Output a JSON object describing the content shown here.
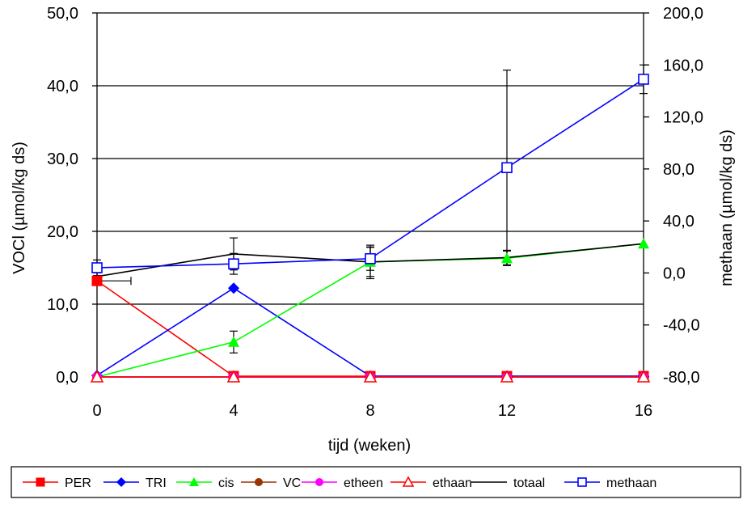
{
  "chart_data": {
    "type": "line",
    "title": "",
    "xlabel": "tijd (weken)",
    "ylabel": "VOCl (µmol/kg ds)",
    "y2label": "methaan (µmol/kg ds)",
    "x_ticks": [
      "0",
      "4",
      "8",
      "12",
      "16"
    ],
    "y_ticks": [
      "0,0",
      "10,0",
      "20,0",
      "30,0",
      "40,0",
      "50,0"
    ],
    "y2_ticks": [
      "-80,0",
      "-40,0",
      "0,0",
      "40,0",
      "80,0",
      "120,0",
      "160,0",
      "200,0"
    ],
    "xlim": [
      0,
      16
    ],
    "ylim": [
      0,
      50
    ],
    "y2lim": [
      -80,
      200
    ],
    "grid": "horizontal",
    "legend_position": "bottom",
    "series": [
      {
        "name": "PER",
        "axis": "left",
        "color": "#ff0000",
        "marker": "square-filled",
        "x": [
          0,
          4,
          8,
          12,
          16
        ],
        "y": [
          13.2,
          0.1,
          0.1,
          0.1,
          0.1
        ]
      },
      {
        "name": "TRI",
        "axis": "left",
        "color": "#0000ff",
        "marker": "diamond-filled",
        "x": [
          0,
          4,
          8,
          12,
          16
        ],
        "y": [
          0.2,
          12.2,
          0.1,
          0.1,
          0.1
        ]
      },
      {
        "name": "cis",
        "axis": "left",
        "color": "#00ff00",
        "marker": "triangle-filled",
        "x": [
          0,
          4,
          8,
          12,
          16
        ],
        "y": [
          0.0,
          4.8,
          15.8,
          16.3,
          18.3
        ],
        "err": [
          0,
          1.5,
          2.0,
          1.0,
          0
        ]
      },
      {
        "name": "VC",
        "axis": "left",
        "color": "#993300",
        "marker": "circle-filled",
        "x": [
          0,
          4,
          8,
          12,
          16
        ],
        "y": [
          0.0,
          0.0,
          0.0,
          0.0,
          0.0
        ]
      },
      {
        "name": "etheen",
        "axis": "left",
        "color": "#ff00ff",
        "marker": "circle-filled",
        "x": [
          0,
          4,
          8,
          12,
          16
        ],
        "y": [
          0.0,
          0.0,
          0.0,
          0.0,
          0.0
        ]
      },
      {
        "name": "ethaan",
        "axis": "left",
        "color": "#ff0000",
        "marker": "triangle-open",
        "x": [
          0,
          4,
          8,
          12,
          16
        ],
        "y": [
          0.0,
          0.0,
          0.0,
          0.0,
          0.0
        ]
      },
      {
        "name": "totaal",
        "axis": "left",
        "color": "#000000",
        "marker": "none",
        "x": [
          0,
          4,
          8,
          12,
          16
        ],
        "y": [
          13.8,
          16.9,
          15.8,
          16.4,
          18.3
        ],
        "err": [
          0.5,
          2.2,
          2.3,
          1.0,
          0
        ]
      },
      {
        "name": "methaan",
        "axis": "right",
        "color": "#0000ff",
        "marker": "square-open",
        "x": [
          0,
          4,
          8,
          12,
          16
        ],
        "y": [
          4,
          7,
          11,
          81,
          149
        ],
        "err": [
          6,
          8,
          9,
          75,
          11
        ]
      }
    ]
  }
}
